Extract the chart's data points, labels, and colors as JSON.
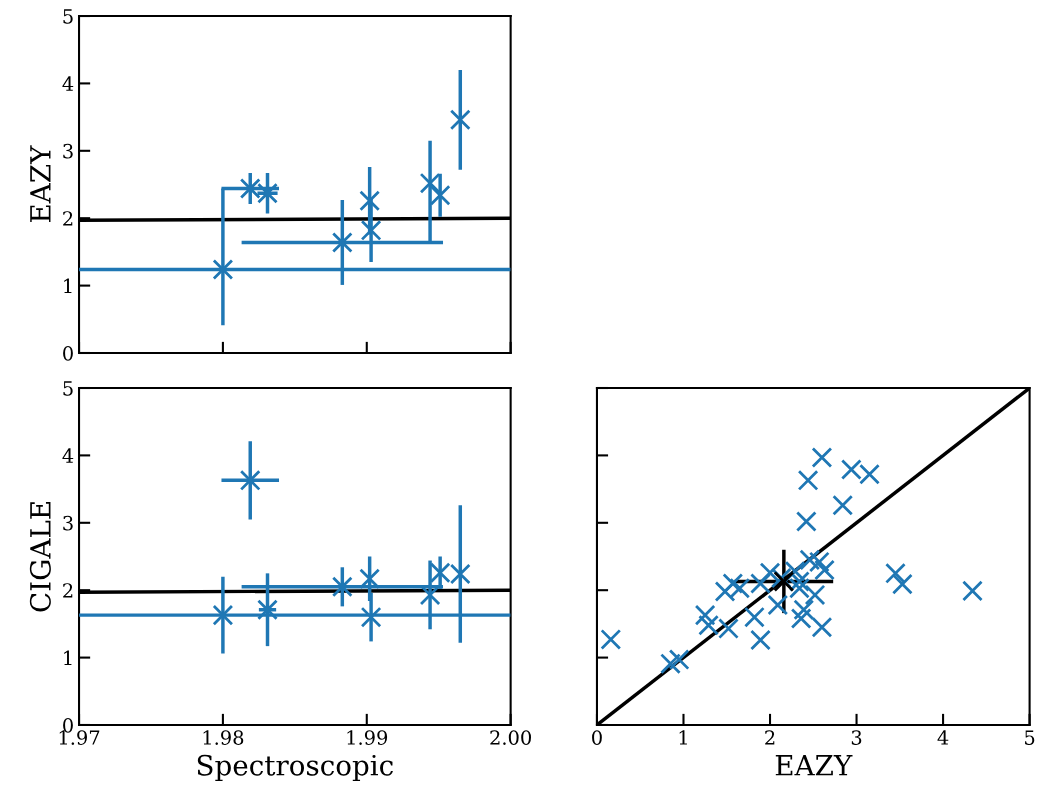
{
  "chart_data": [
    {
      "type": "scatter",
      "ylabel": "EAZY",
      "xlim": [
        1.97,
        2.0
      ],
      "ylim": [
        0,
        5
      ],
      "xticks": [
        1.97,
        1.98,
        1.99,
        2.0
      ],
      "yticks": [
        0,
        1,
        2,
        3,
        4,
        5
      ],
      "tick_labels": "y",
      "marker": "cross",
      "grid": false,
      "legend": false,
      "series": [
        {
          "color": "#1f77b4",
          "x": [
            1.98,
            1.9819,
            1.9831,
            1.9883,
            1.9902,
            1.9903,
            1.9944,
            1.9951,
            1.9965
          ],
          "values": [
            1.24,
            2.44,
            2.37,
            1.64,
            2.26,
            1.82,
            2.52,
            2.34,
            3.46
          ],
          "errors": [
            [
              0.41,
              2.44
            ],
            0.23,
            0.3,
            0.63,
            0.5,
            0.47,
            [
              1.64,
              3.15
            ],
            0.32,
            0.74
          ],
          "xerrors": [
            [
              1.97,
              2.0
            ],
            0.002,
            0.0007,
            0.007,
            null,
            null,
            null,
            null,
            null
          ]
        },
        {
          "type": "line",
          "marker": "none",
          "color": "#000000",
          "x": [
            1.97,
            2.0
          ],
          "values": [
            1.97,
            2.0
          ]
        }
      ]
    },
    {
      "type": "scatter",
      "xlabel": "Spectroscopic",
      "ylabel": "CIGALE",
      "xlim": [
        1.97,
        2.0
      ],
      "ylim": [
        0,
        5
      ],
      "xticks": [
        1.97,
        1.98,
        1.99,
        {
          "value": 2.0,
          "label": "2.00"
        }
      ],
      "yticks": [
        0,
        1,
        2,
        3,
        4,
        5
      ],
      "marker": "cross",
      "grid": false,
      "legend": false,
      "series": [
        {
          "color": "#1f77b4",
          "x": [
            1.98,
            1.9819,
            1.9831,
            1.9883,
            1.9902,
            1.9903,
            1.9944,
            1.9951,
            1.9965
          ],
          "values": [
            1.63,
            3.63,
            1.71,
            2.05,
            2.17,
            1.6,
            1.93,
            2.26,
            2.24
          ],
          "errors": [
            0.57,
            0.58,
            0.54,
            0.29,
            0.33,
            0.36,
            0.51,
            0.24,
            1.02
          ],
          "xerrors": [
            [
              1.97,
              2.0
            ],
            0.002,
            0.0006,
            0.007,
            null,
            null,
            null,
            null,
            null
          ]
        },
        {
          "type": "line",
          "marker": "none",
          "color": "#000000",
          "x": [
            1.97,
            2.0
          ],
          "values": [
            1.97,
            2.0
          ]
        }
      ]
    },
    {
      "type": "scatter",
      "xlabel": "EAZY",
      "xlim": [
        0,
        5
      ],
      "ylim": [
        0,
        5
      ],
      "xticks": [
        0,
        1,
        2,
        3,
        4,
        5
      ],
      "yticks": [
        0,
        1,
        2,
        3,
        4,
        5
      ],
      "tick_labels": "x",
      "marker": "cross",
      "grid": false,
      "legend": false,
      "series": [
        {
          "color": "#1f77b4",
          "x": [
            0.16,
            0.85,
            0.95,
            1.25,
            1.29,
            1.48,
            1.52,
            1.57,
            1.65,
            1.82,
            1.89,
            1.89,
            2.0,
            2.09,
            2.13,
            2.29,
            2.34,
            2.34,
            2.36,
            2.39,
            2.42,
            2.44,
            2.46,
            2.52,
            2.57,
            2.6,
            2.6,
            2.63,
            2.84,
            2.94,
            3.15,
            3.45,
            3.53,
            4.34
          ],
          "values": [
            1.27,
            0.91,
            0.97,
            1.63,
            1.48,
            1.98,
            1.43,
            2.1,
            2.03,
            1.6,
            1.26,
            2.1,
            2.26,
            1.78,
            2.18,
            2.28,
            2.13,
            2.03,
            1.58,
            1.71,
            3.02,
            3.63,
            2.45,
            1.93,
            2.42,
            3.97,
            1.45,
            2.3,
            3.26,
            3.79,
            3.72,
            2.25,
            2.09,
            1.99
          ]
        },
        {
          "color": "#000000",
          "x": [
            2.16
          ],
          "values": [
            2.13
          ],
          "errors": [
            0.47
          ],
          "xerrors": [
            0.57
          ]
        },
        {
          "type": "line",
          "marker": "none",
          "color": "#000000",
          "x": [
            0,
            5
          ],
          "values": [
            0,
            5
          ]
        }
      ]
    }
  ]
}
